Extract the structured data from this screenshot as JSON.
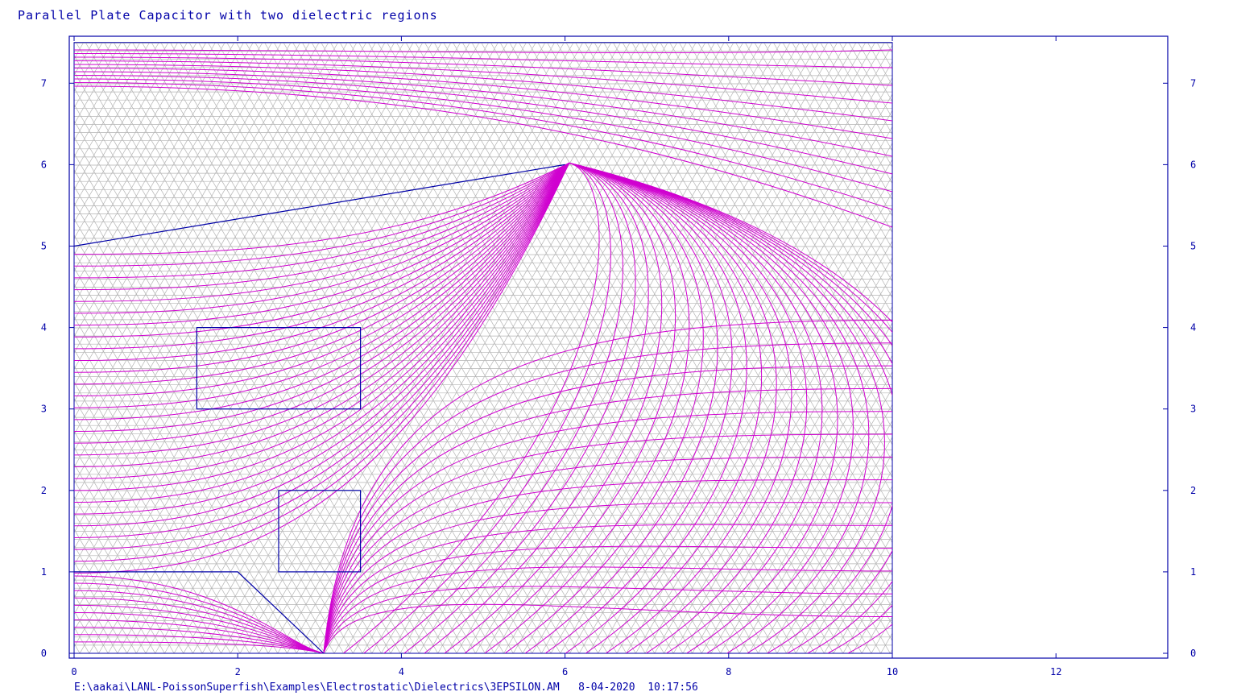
{
  "title": "Parallel Plate Capacitor with two dielectric regions",
  "footer": "E:\\aakai\\LANL-PoissonSuperfish\\Examples\\Electrostatic\\Dielectrics\\3EPSILON.AM   8-04-2020  10:17:56",
  "x_ticks": [
    "0",
    "2",
    "4",
    "6",
    "8",
    "10",
    "12"
  ],
  "y_ticks": [
    "0",
    "1",
    "2",
    "3",
    "4",
    "5",
    "6",
    "7"
  ],
  "colors": {
    "frame": "#0000a8",
    "mesh": "#b4b4b4",
    "equipotential": "#d000d0",
    "boundary": "#0000a8"
  },
  "geometry_note_units": "problem coordinates",
  "problem": {
    "xmax": 10,
    "ymax": 7.5,
    "axis_x_range": [
      0,
      13.36
    ],
    "axis_y_range": [
      0,
      7.56
    ],
    "upper_electrode": [
      [
        0,
        5
      ],
      [
        6,
        6
      ]
    ],
    "lower_electrode": [
      [
        0,
        1
      ],
      [
        2,
        1
      ],
      [
        3.05,
        0
      ]
    ],
    "dielectric_1": [
      [
        1.5,
        3
      ],
      [
        3.5,
        4
      ]
    ],
    "dielectric_2": [
      [
        2.5,
        1
      ],
      [
        3.5,
        2
      ]
    ]
  }
}
